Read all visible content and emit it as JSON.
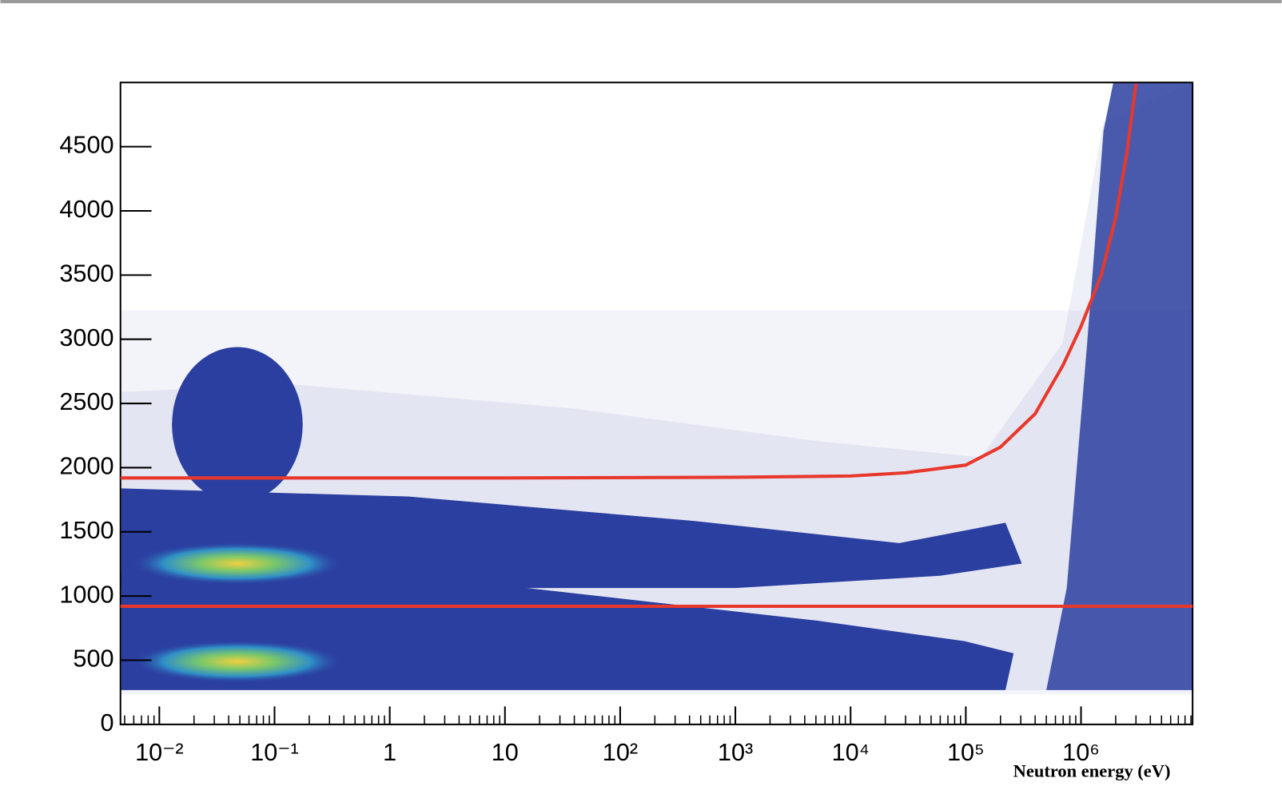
{
  "chart_data": {
    "type": "line",
    "x_label": "Neutron energy (eV)",
    "xscale": "log",
    "xlim": [
      0.0046,
      9300000
    ],
    "ylim": [
      0,
      5000
    ],
    "xticks": [
      {
        "value": 0.01,
        "label": "10⁻²"
      },
      {
        "value": 0.1,
        "label": "10⁻¹"
      },
      1,
      10,
      {
        "value": 100,
        "label": "10²"
      },
      {
        "value": 1000,
        "label": "10³"
      },
      {
        "value": 10000,
        "label": "10⁴"
      },
      {
        "value": 100000,
        "label": "10⁵"
      },
      {
        "value": 1000000,
        "label": "10⁶"
      }
    ],
    "yticks": [
      0,
      500,
      1000,
      1500,
      2000,
      2500,
      3000,
      3500,
      4000,
      4500
    ],
    "series": [
      {
        "color": "#e8382c",
        "x": [
          0.0046,
          9300000
        ],
        "values": [
          920,
          920
        ]
      },
      {
        "color": "#e8382c",
        "x": [
          0.0046,
          0.1,
          10,
          1000,
          10000,
          30000,
          100000,
          200000,
          400000,
          700000,
          1000000,
          1500000,
          2000000,
          2500000,
          3000000
        ],
        "values": [
          1920,
          1920,
          1920,
          1925,
          1935,
          1960,
          2020,
          2160,
          2420,
          2800,
          3100,
          3500,
          3950,
          4450,
          4990
        ]
      }
    ]
  }
}
